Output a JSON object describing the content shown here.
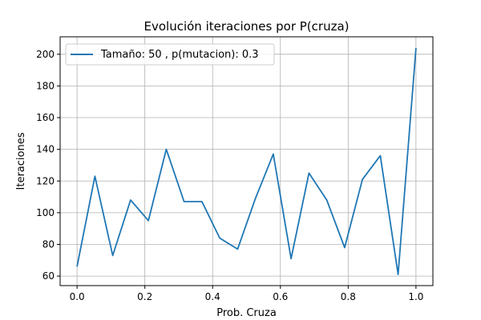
{
  "chart_data": {
    "type": "line",
    "title": "Evolución iteraciones por P(cruza)",
    "xlabel": "Prob. Cruza",
    "ylabel": "Iteraciones",
    "xlim": [
      -0.05,
      1.05
    ],
    "ylim": [
      54,
      211
    ],
    "xticks": [
      0.0,
      0.2,
      0.4,
      0.6,
      0.8,
      1.0
    ],
    "xtick_labels": [
      "0.0",
      "0.2",
      "0.4",
      "0.6",
      "0.8",
      "1.0"
    ],
    "yticks": [
      60,
      80,
      100,
      120,
      140,
      160,
      180,
      200
    ],
    "ytick_labels": [
      "60",
      "80",
      "100",
      "120",
      "140",
      "160",
      "180",
      "200"
    ],
    "grid": true,
    "legend_position": "top-left",
    "series": [
      {
        "name": "Tamaño: 50 , p(mutacion): 0.3",
        "color": "#1f77b4",
        "x": [
          0.0,
          0.0526,
          0.1053,
          0.1579,
          0.2105,
          0.2632,
          0.3158,
          0.3684,
          0.4211,
          0.4737,
          0.5263,
          0.5789,
          0.6316,
          0.6842,
          0.7368,
          0.7895,
          0.8421,
          0.8947,
          0.9474,
          1.0
        ],
        "y": [
          66,
          123,
          73,
          108,
          95,
          140,
          107,
          107,
          84,
          77,
          109,
          137,
          71,
          125,
          108,
          78,
          121,
          136,
          61,
          204
        ]
      }
    ]
  }
}
